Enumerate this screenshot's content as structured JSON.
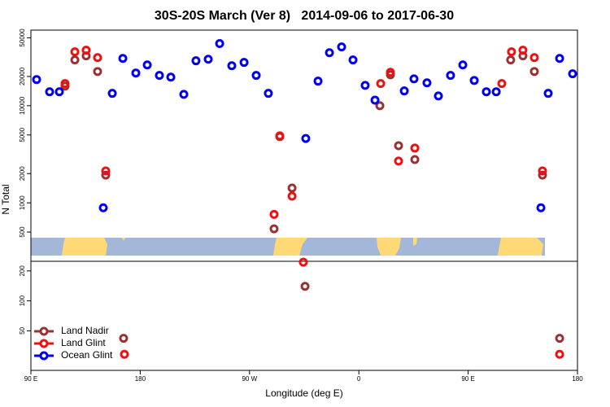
{
  "chart_data": [
    {
      "type": "scatter",
      "title": "30S-20S March (Ver 8)   2014-09-06 to 2017-06-30",
      "y_label": "N Total",
      "log_y": true,
      "xlim": [
        90,
        540
      ],
      "ylim": [
        250,
        60000
      ],
      "yticks": [
        500,
        1000,
        2000,
        5000,
        10000,
        20000,
        50000
      ],
      "series": [
        {
          "color": "#993333",
          "x": [
            118.1,
            126.2,
            135.5,
            144.9,
            151.6,
            290.2,
            294.9,
            305,
            377.3,
            386,
            392.7,
            406.1,
            485,
            495.1,
            504.5,
            511.2
          ],
          "values": [
            15900,
            29600,
            32600,
            22500,
            1930,
            540,
            4800,
            1420,
            10000,
            20800,
            3870,
            2790,
            29600,
            32600,
            22500,
            1930
          ]
        },
        {
          "color": "#ee1111",
          "x": [
            118.1,
            126.2,
            135.5,
            144.9,
            151.6,
            290.2,
            294.9,
            305,
            378,
            386,
            392.7,
            406.1,
            477.7,
            485.7,
            495.1,
            504.5,
            511.2
          ],
          "values": [
            16900,
            35900,
            37300,
            31300,
            2130,
            760,
            4890,
            1170,
            16900,
            22100,
            2690,
            3660,
            16900,
            35900,
            37300,
            31300,
            2130
          ]
        },
        {
          "color": "#0000ee",
          "x": [
            94.7,
            105.4,
            113.4,
            149.6,
            165.7,
            157,
            176.4,
            185.8,
            195.8,
            205.2,
            215.9,
            225.9,
            236,
            245.4,
            255.4,
            265.5,
            275.5,
            285.5,
            316.3,
            326.4,
            335.8,
            345.8,
            355.2,
            365.2,
            373.3,
            397.4,
            405.4,
            416.1,
            425.5,
            435.5,
            445.6,
            455,
            465,
            473.1,
            509.9,
            515.9,
            525.3,
            536
          ],
          "values": [
            18600,
            13900,
            13900,
            890,
            30700,
            13400,
            21700,
            26300,
            20500,
            19700,
            13100,
            29000,
            30100,
            43600,
            25800,
            27900,
            20500,
            13400,
            4600,
            17900,
            35100,
            40300,
            29600,
            16200,
            11400,
            14200,
            18900,
            17200,
            12600,
            20500,
            26300,
            18200,
            13900,
            13900,
            890,
            13400,
            30700,
            21300
          ]
        }
      ]
    },
    {
      "type": "scatter",
      "x_label": "Longitude (deg E)",
      "log_y": true,
      "xlim": [
        90,
        540
      ],
      "ylim": [
        20,
        250
      ],
      "yticks": [
        50,
        100,
        200
      ],
      "xticks": [
        {
          "value": 90,
          "label": "90 E"
        },
        180,
        {
          "value": 270,
          "label": "90 W"
        },
        {
          "value": 360,
          "label": "0"
        },
        {
          "value": 450,
          "label": "90 E"
        },
        {
          "value": 540,
          "label": "180"
        }
      ],
      "legend": "lower left",
      "series": [
        {
          "name": "Land Nadir",
          "color": "#993333",
          "x": [
            315.7,
            166.3,
            525.3
          ],
          "values": [
            140,
            42,
            42
          ]
        },
        {
          "name": "Land Glint",
          "color": "#ee1111",
          "x": [
            314.3,
            167,
            525.3
          ],
          "values": [
            245,
            29,
            29
          ]
        },
        {
          "name": "Ocean Glint",
          "color": "#0000ee",
          "x": [],
          "values": []
        }
      ]
    }
  ]
}
